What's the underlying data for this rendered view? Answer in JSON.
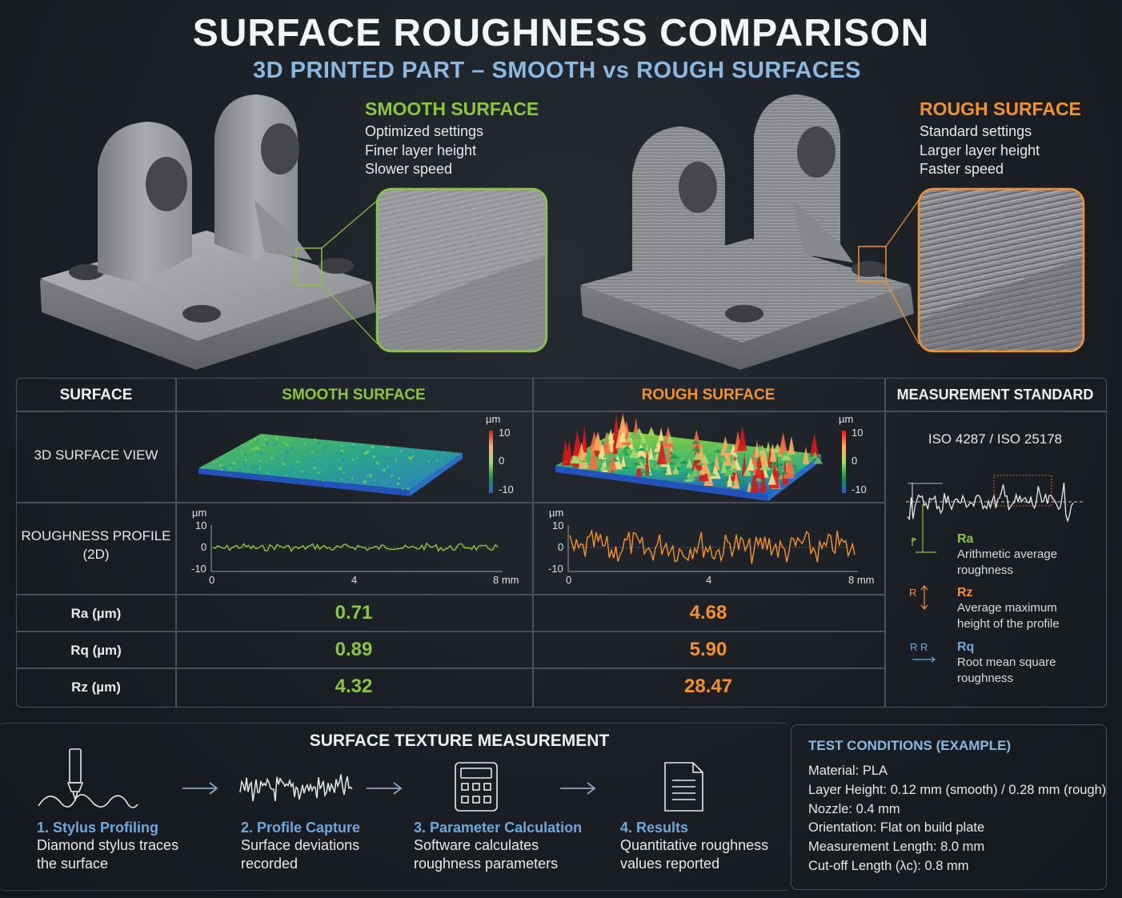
{
  "header": {
    "title": "SURFACE ROUGHNESS COMPARISON",
    "subtitle": "3D PRINTED PART – SMOOTH vs ROUGH SURFACES"
  },
  "smooth": {
    "heading": "SMOOTH SURFACE",
    "notes": [
      "Optimized settings",
      "Finer layer height",
      "Slower speed"
    ],
    "color": "#8cc63f"
  },
  "rough": {
    "heading": "ROUGH SURFACE",
    "notes": [
      "Standard settings",
      "Larger layer height",
      "Faster speed"
    ],
    "color": "#f3922a"
  },
  "table": {
    "headers": [
      "SURFACE",
      "SMOOTH SURFACE",
      "ROUGH SURFACE",
      "MEASUREMENT STANDARD"
    ],
    "rows": {
      "surface_view": "3D SURFACE VIEW",
      "profile": [
        "ROUGHNESS PROFILE",
        "(2D)"
      ],
      "ra": "Ra (µm)",
      "rq": "Rq (µm)",
      "rz": "Rz (µm)"
    },
    "values": {
      "smooth": {
        "ra": "0.71",
        "rq": "0.89",
        "rz": "4.32"
      },
      "rough": {
        "ra": "4.68",
        "rq": "5.90",
        "rz": "28.47"
      }
    },
    "colorbar": {
      "unit": "µm",
      "ticks": [
        "10",
        "0",
        "-10"
      ]
    },
    "profile_axes": {
      "unit": "µm",
      "yticks": [
        "10",
        "0",
        "-10"
      ],
      "xticks": [
        "0",
        "4",
        "8 mm"
      ]
    },
    "standard": "ISO 4287 / ISO 25178",
    "legend": [
      {
        "name": "Ra",
        "desc": [
          "Arithmetic average",
          "roughness"
        ],
        "color": "#8cc63f"
      },
      {
        "name": "Rz",
        "desc": [
          "Average maximum",
          "height of the profile"
        ],
        "color": "#f3922a"
      },
      {
        "name": "Rq",
        "desc": [
          "Root mean square",
          "roughness"
        ],
        "color": "#6ea8dc"
      }
    ]
  },
  "process": {
    "title": "SURFACE TEXTURE MEASUREMENT",
    "steps": [
      {
        "title": "1. Stylus Profiling",
        "text": [
          "Diamond stylus traces",
          "the surface"
        ],
        "icon": "stylus-icon"
      },
      {
        "title": "2. Profile Capture",
        "text": [
          "Surface deviations",
          "recorded"
        ],
        "icon": "waveform-icon"
      },
      {
        "title": "3. Parameter Calculation",
        "text": [
          "Software calculates",
          "roughness parameters"
        ],
        "icon": "calculator-icon"
      },
      {
        "title": "4. Results",
        "text": [
          "Quantitative roughness",
          "values reported"
        ],
        "icon": "document-icon"
      }
    ]
  },
  "test_conditions": {
    "title": "TEST CONDITIONS (EXAMPLE)",
    "lines": [
      "Material: PLA",
      "Layer Height: 0.12 mm (smooth) / 0.28 mm (rough)",
      "Nozzle: 0.4 mm",
      "Orientation: Flat on build plate",
      "Measurement Length: 8.0 mm",
      "Cut-off Length (λc): 0.8 mm"
    ]
  }
}
